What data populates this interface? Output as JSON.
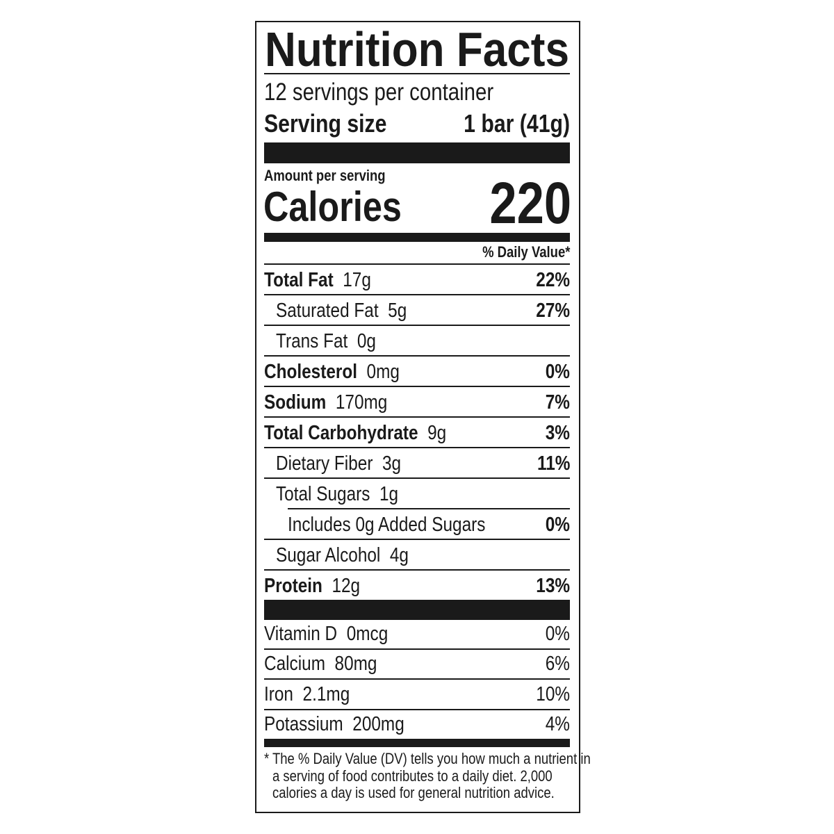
{
  "title": "Nutrition Facts",
  "servings_per_container": "12 servings per container",
  "serving_size_label": "Serving size",
  "serving_size_value": "1 bar (41g)",
  "amount_per_serving": "Amount per serving",
  "calories_label": "Calories",
  "calories_value": "220",
  "daily_value_header": "% Daily Value*",
  "nutrients": [
    {
      "name": "Total Fat",
      "amount": "17g",
      "dv": "22%",
      "bold": true,
      "indent": 0
    },
    {
      "name": "Saturated Fat",
      "amount": "5g",
      "dv": "27%",
      "bold": false,
      "indent": 1
    },
    {
      "name": "Trans Fat",
      "amount": "0g",
      "dv": "",
      "bold": false,
      "indent": 1
    },
    {
      "name": "Cholesterol",
      "amount": "0mg",
      "dv": "0%",
      "bold": true,
      "indent": 0
    },
    {
      "name": "Sodium",
      "amount": "170mg",
      "dv": "7%",
      "bold": true,
      "indent": 0
    },
    {
      "name": "Total Carbohydrate",
      "amount": "9g",
      "dv": "3%",
      "bold": true,
      "indent": 0
    },
    {
      "name": "Dietary Fiber",
      "amount": "3g",
      "dv": "11%",
      "bold": false,
      "indent": 1
    },
    {
      "name": "Total Sugars",
      "amount": "1g",
      "dv": "",
      "bold": false,
      "indent": 1
    },
    {
      "name": "Includes 0g Added Sugars",
      "amount": "",
      "dv": "0%",
      "bold": false,
      "indent": 2
    },
    {
      "name": "Sugar Alcohol",
      "amount": "4g",
      "dv": "",
      "bold": false,
      "indent": 1
    },
    {
      "name": "Protein",
      "amount": "12g",
      "dv": "13%",
      "bold": true,
      "indent": 0
    }
  ],
  "vitamins": [
    {
      "name": "Vitamin D",
      "amount": "0mcg",
      "dv": "0%"
    },
    {
      "name": "Calcium",
      "amount": "80mg",
      "dv": "6%"
    },
    {
      "name": "Iron",
      "amount": "2.1mg",
      "dv": "10%"
    },
    {
      "name": "Potassium",
      "amount": "200mg",
      "dv": "4%"
    }
  ],
  "footnote": [
    "* The % Daily Value (DV) tells you how much a nutrient in",
    "a serving of food contributes to a daily diet. 2,000",
    "calories a day is used for general nutrition advice."
  ]
}
